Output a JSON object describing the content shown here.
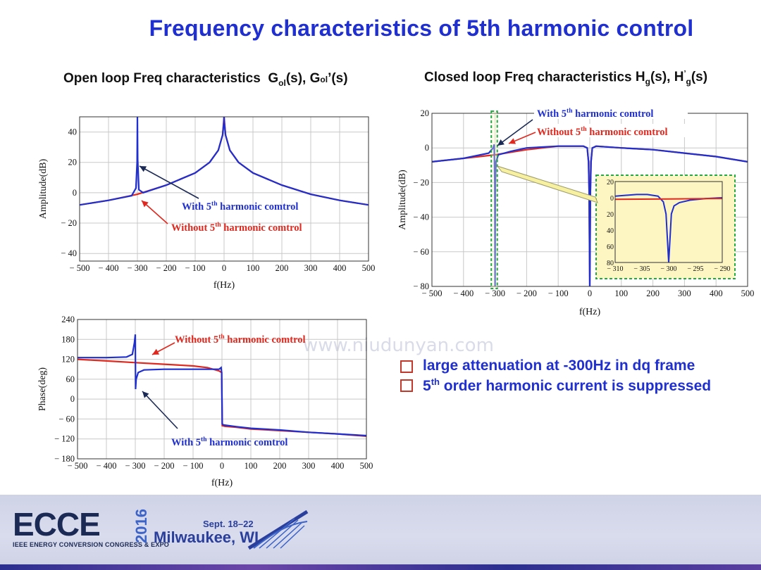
{
  "slide": {
    "title": "Frequency characteristics of 5th harmonic control",
    "subtitle_left": "Open loop Freq characteristics",
    "subtitle_left_math": "Gₒₗ(s), Gₒₗ’(s)",
    "subtitle_right": "Closed loop Freq characteristics",
    "subtitle_right_math": "H_g(s), H’_g(s)",
    "watermark": "www.niudunyan.com",
    "bullets": [
      "large attenuation at -300Hz in dq frame",
      "5th order harmonic current is suppressed"
    ],
    "footer": {
      "logo": "ECCE",
      "year": "2016",
      "org": "IEEE ENERGY CONVERSION CONGRESS & EXPO",
      "dates": "Sept. 18–22",
      "city": "Milwaukee, WI"
    }
  },
  "colors": {
    "with": "#1f2fd0",
    "without": "#e0281e",
    "title": "#1f2fd0",
    "zoom_bg": "#fdf6c3",
    "zoom_border": "#22aa44"
  },
  "chart_data": [
    {
      "id": "open_loop_amplitude",
      "type": "line",
      "xlabel": "f(Hz)",
      "ylabel": "Amplitude(dB)",
      "xlim": [
        -500,
        500
      ],
      "ylim": [
        -45,
        50
      ],
      "xticks": [
        -500,
        -400,
        -300,
        -200,
        -100,
        0,
        100,
        200,
        300,
        400,
        500
      ],
      "xtick_labels": [
        "− 500",
        "− 400",
        "− 300",
        "− 200",
        "− 100",
        "0",
        "100",
        "200",
        "300",
        "400",
        "500"
      ],
      "yticks": [
        -40,
        -20,
        0,
        20,
        40
      ],
      "ytick_labels": [
        "− 40",
        "− 20",
        "0",
        "20",
        "40"
      ],
      "grid": true,
      "series": [
        {
          "name": "With 5th harmonic comtrol",
          "x": [
            -500,
            -400,
            -320,
            -305,
            -301,
            -300,
            -299,
            -295,
            -280,
            -200,
            -100,
            -50,
            -20,
            -5,
            -1,
            0,
            1,
            5,
            20,
            50,
            100,
            200,
            300,
            400,
            500
          ],
          "y": [
            -8,
            -5,
            -2,
            3,
            20,
            50,
            22,
            2,
            0,
            5,
            13,
            20,
            28,
            38,
            46,
            50,
            46,
            38,
            28,
            20,
            13,
            5,
            -1,
            -5,
            -8
          ]
        },
        {
          "name": "Without 5th harmonic comtrol",
          "x": [
            -500,
            -400,
            -300,
            -200,
            -100,
            -50,
            -20,
            -5,
            0,
            5,
            20,
            50,
            100,
            200,
            300,
            400,
            500
          ],
          "y": [
            -8,
            -5,
            -1,
            5,
            13,
            20,
            28,
            38,
            50,
            38,
            28,
            20,
            13,
            5,
            -1,
            -5,
            -8
          ]
        }
      ],
      "annotations": [
        {
          "text": "With 5",
          "sup": "th",
          "rest": " harmonic comtrol",
          "series": "With 5th harmonic comtrol"
        },
        {
          "text": "Without 5",
          "sup": "th",
          "rest": " harmonic comtrol",
          "series": "Without 5th harmonic comtrol"
        }
      ]
    },
    {
      "id": "open_loop_phase",
      "type": "line",
      "xlabel": "f(Hz)",
      "ylabel": "Phase(deg)",
      "xlim": [
        -500,
        500
      ],
      "ylim": [
        -180,
        240
      ],
      "xticks": [
        -500,
        -400,
        -300,
        -200,
        -100,
        0,
        100,
        200,
        300,
        400,
        500
      ],
      "xtick_labels": [
        "− 500",
        "− 400",
        "− 300",
        "− 200",
        "− 100",
        "0",
        "100",
        "200",
        "300",
        "400",
        "500"
      ],
      "yticks": [
        -180,
        -120,
        -60,
        0,
        60,
        120,
        180,
        240
      ],
      "ytick_labels": [
        "− 180",
        "− 120",
        "− 60",
        "0",
        "60",
        "120",
        "180",
        "240"
      ],
      "grid": true,
      "series": [
        {
          "name": "Without 5th harmonic comtrol",
          "x": [
            -500,
            -400,
            -300,
            -200,
            -100,
            -50,
            -10,
            -1,
            1,
            10,
            50,
            100,
            200,
            300,
            400,
            500
          ],
          "y": [
            120,
            115,
            110,
            105,
            100,
            95,
            85,
            80,
            -80,
            -82,
            -85,
            -90,
            -95,
            -100,
            -105,
            -112
          ]
        },
        {
          "name": "With 5th harmonic comtrol",
          "x": [
            -500,
            -400,
            -330,
            -310,
            -303,
            -300,
            -299,
            -297,
            -290,
            -270,
            -200,
            -100,
            -10,
            -3,
            -1,
            1,
            5,
            50,
            100,
            200,
            300,
            400,
            500
          ],
          "y": [
            125,
            125,
            127,
            135,
            170,
            195,
            30,
            60,
            80,
            88,
            90,
            90,
            90,
            95,
            80,
            -75,
            -78,
            -83,
            -88,
            -93,
            -100,
            -105,
            -110
          ]
        }
      ],
      "annotations": [
        {
          "text": "Without 5",
          "sup": "th",
          "rest": " harmonic comtrol",
          "series": "Without 5th harmonic comtrol"
        },
        {
          "text": "With 5",
          "sup": "th",
          "rest": " harmonic comtrol",
          "series": "With 5th harmonic comtrol"
        }
      ]
    },
    {
      "id": "closed_loop_amplitude",
      "type": "line",
      "xlabel": "f(Hz)",
      "ylabel": "Amplitude(dB)",
      "xlim": [
        -500,
        500
      ],
      "ylim": [
        -80,
        20
      ],
      "xticks": [
        -500,
        -400,
        -300,
        -200,
        -100,
        0,
        100,
        200,
        300,
        400,
        500
      ],
      "xtick_labels": [
        "− 500",
        "− 400",
        "− 300",
        "− 200",
        "− 100",
        "0",
        "100",
        "200",
        "300",
        "400",
        "500"
      ],
      "yticks": [
        -80,
        -60,
        -40,
        -20,
        0,
        20
      ],
      "ytick_labels": [
        "− 80",
        "− 60",
        "− 40",
        "− 20",
        "0",
        "20"
      ],
      "grid": true,
      "series": [
        {
          "name": "With 5th harmonic comtrol",
          "x": [
            -500,
            -400,
            -320,
            -306,
            -303,
            -301,
            -300,
            -299,
            -297,
            -290,
            -250,
            -200,
            -100,
            -20,
            -8,
            -4,
            -2,
            0,
            2,
            4,
            8,
            20,
            100,
            200,
            300,
            400,
            500
          ],
          "y": [
            -8,
            -6,
            -3,
            0,
            2,
            -20,
            -80,
            -20,
            -8,
            -4,
            -2,
            0,
            1,
            1,
            0,
            -8,
            -25,
            -80,
            -25,
            -8,
            0,
            1,
            0,
            -1,
            -3,
            -5,
            -8
          ]
        },
        {
          "name": "Without 5th harmonic comtrol",
          "x": [
            -500,
            -400,
            -300,
            -200,
            -100,
            -20,
            -8,
            -4,
            -2,
            0,
            2,
            4,
            8,
            20,
            100,
            200,
            300,
            400,
            500
          ],
          "y": [
            -8,
            -6,
            -4,
            -1,
            1,
            1,
            0,
            -8,
            -25,
            -80,
            -25,
            -8,
            0,
            1,
            0,
            -1,
            -3,
            -5,
            -8
          ]
        }
      ],
      "annotations": [
        {
          "text": "With 5",
          "sup": "th",
          "rest": " harmonic comtrol",
          "series": "With 5th harmonic comtrol"
        },
        {
          "text": "Without 5",
          "sup": "th",
          "rest": " harmonic comtrol",
          "series": "Without 5th harmonic comtrol"
        }
      ],
      "inset": {
        "xlim": [
          -310,
          -290
        ],
        "ylim": [
          -80,
          20
        ],
        "xticks": [
          -310,
          -305,
          -300,
          -295,
          -290
        ],
        "xtick_labels": [
          "− 310",
          "− 305",
          "− 300",
          "− 295",
          "− 290"
        ],
        "yticks": [
          -80,
          -60,
          -40,
          -20,
          0,
          20
        ],
        "ytick_labels": [
          "80",
          "60",
          "40",
          "20",
          "0",
          "20"
        ],
        "series": [
          {
            "name": "With 5th harmonic comtrol",
            "x": [
              -310,
              -306,
              -304,
              -302,
              -301,
              -300.5,
              -300,
              -299.5,
              -299,
              -298,
              -296,
              -293,
              -290
            ],
            "y": [
              2,
              4,
              4,
              2,
              -5,
              -20,
              -80,
              -20,
              -10,
              -6,
              -3,
              -1,
              0
            ]
          },
          {
            "name": "Without 5th harmonic comtrol",
            "x": [
              -310,
              -300,
              -290
            ],
            "y": [
              -2,
              -1.5,
              -1
            ]
          }
        ]
      }
    }
  ]
}
